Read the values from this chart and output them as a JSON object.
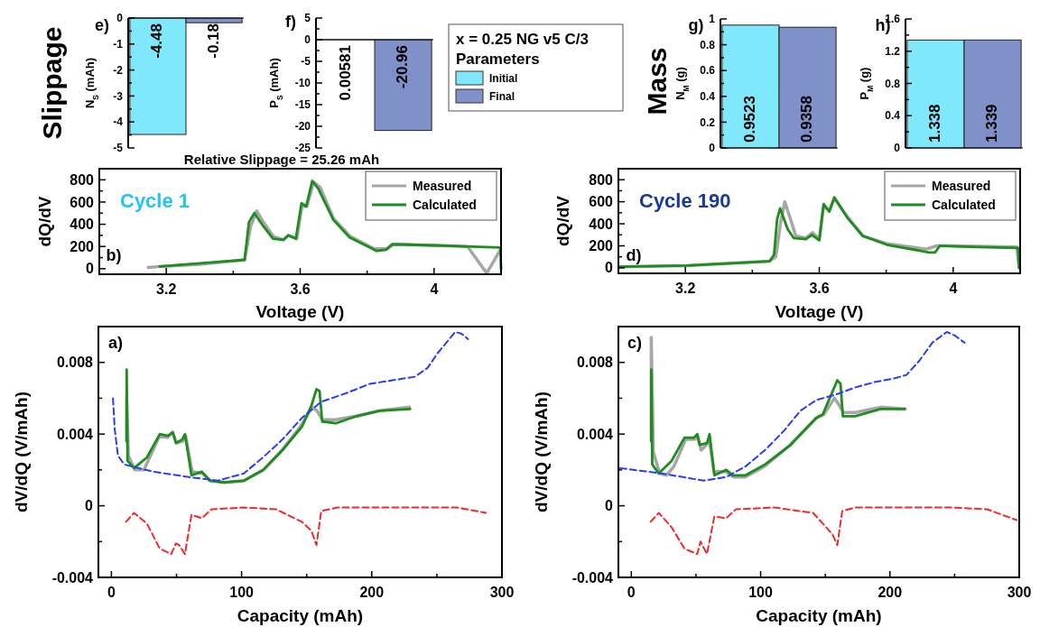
{
  "chart_data": [
    {
      "type": "bar",
      "ylabel": "N$_{S}$ (mAh)",
      "annotations": [
        "Slippage",
        "e)"
      ],
      "categories": [
        null,
        null
      ],
      "values": [
        -4.48,
        -0.18
      ],
      "colors": [
        "#80e8fb",
        "#8090c8"
      ],
      "data_labels": true,
      "ylim": [
        -5,
        0
      ],
      "yticks": [
        0,
        {
          "value": -0.5,
          "label": null
        },
        -1,
        {
          "value": -1.5,
          "label": null
        },
        -2,
        {
          "value": -2.5,
          "label": null
        },
        -3,
        {
          "value": -3.5,
          "label": null
        },
        -4,
        {
          "value": -4.5,
          "label": null
        },
        -5
      ]
    },
    {
      "type": "bar",
      "ylabel": "P$_{S}$ (mAh)",
      "annotations": [
        "f)",
        "Relative Slippage = 25.26 mAh"
      ],
      "categories": [
        null,
        null
      ],
      "values": [
        0.00581,
        -20.96
      ],
      "colors": [
        "#80e8fb",
        "#8090c8"
      ],
      "data_labels": true,
      "ylim": [
        -25,
        5
      ],
      "yticks": [
        5,
        {
          "value": 2.5,
          "label": null
        },
        0,
        {
          "value": -2.5,
          "label": null
        },
        -5,
        {
          "value": -7.5,
          "label": null
        },
        -10,
        {
          "value": -12.5,
          "label": null
        },
        -15,
        {
          "value": -17.5,
          "label": null
        },
        -20,
        {
          "value": -22.5,
          "label": null
        },
        -25
      ]
    },
    {
      "type": "other",
      "title": "x = 0.25 NG v5 C/3",
      "subtitle": "Parameters",
      "legend": "top right",
      "series": [
        {
          "name": "Initial",
          "color": "#80e8fb"
        },
        {
          "name": "Final",
          "color": "#8090c8"
        }
      ]
    },
    {
      "type": "bar",
      "ylabel": "N$_{M}$ (g)",
      "annotations": [
        "Mass",
        "g)"
      ],
      "categories": [
        null,
        null
      ],
      "values": [
        0.9523,
        0.9358
      ],
      "colors": [
        "#80e8fb",
        "#8090c8"
      ],
      "data_labels": true,
      "ylim": [
        0,
        1
      ],
      "yticks": [
        0,
        {
          "value": 0.1,
          "label": null
        },
        0.2,
        {
          "value": 0.3,
          "label": null
        },
        0.4,
        {
          "value": 0.5,
          "label": null
        },
        0.6,
        {
          "value": 0.7,
          "label": null
        },
        0.8,
        {
          "value": 0.9,
          "label": null
        },
        1
      ]
    },
    {
      "type": "bar",
      "ylabel": "P$_{M}$ (g)",
      "annotations": [
        "h)"
      ],
      "categories": [
        null,
        null
      ],
      "values": [
        1.338,
        1.339
      ],
      "colors": [
        "#80e8fb",
        "#8090c8"
      ],
      "data_labels": true,
      "ylim": [
        0,
        1.6
      ],
      "yticks": [
        0,
        {
          "value": 0.2,
          "label": null
        },
        0.4,
        {
          "value": 0.6,
          "label": null
        },
        0.8,
        {
          "value": 1.0,
          "label": null
        },
        1.2,
        {
          "value": 1.4,
          "label": null
        },
        1.6
      ]
    },
    {
      "type": "line",
      "xlabel": "Voltage (V)",
      "ylabel": "dQ/dV",
      "annotations": [
        "Cycle 1",
        "b)"
      ],
      "legend": "top right",
      "xlim": [
        3.0,
        4.2
      ],
      "xticks": [
        3.2,
        {
          "value": 3.4,
          "label": null
        },
        3.6,
        {
          "value": 3.8,
          "label": null
        },
        4
      ],
      "ylim": [
        -50,
        900
      ],
      "yticks": [
        0,
        {
          "value": 100,
          "label": null
        },
        200,
        {
          "value": 300,
          "label": null
        },
        400,
        {
          "value": 500,
          "label": null
        },
        600,
        {
          "value": 700,
          "label": null
        },
        800
      ],
      "series": [
        {
          "name": "Measured",
          "color": "#a6a6a6",
          "x": [
            3.146,
            3.18,
            3.3,
            3.434,
            3.452,
            3.47,
            3.49,
            3.52,
            3.55,
            3.565,
            3.59,
            3.605,
            3.62,
            3.64,
            3.66,
            3.7,
            3.75,
            3.82,
            3.86,
            3.88,
            4.0,
            4.1,
            4.157,
            4.198
          ],
          "values": [
            10,
            20,
            40,
            80,
            380,
            520,
            420,
            290,
            260,
            300,
            270,
            560,
            560,
            780,
            730,
            450,
            290,
            180,
            180,
            220,
            210,
            200,
            -40,
            170
          ]
        },
        {
          "name": "Calculated",
          "color": "#1e8c1e",
          "x": [
            3.18,
            3.434,
            3.447,
            3.463,
            3.488,
            3.519,
            3.55,
            3.564,
            3.587,
            3.604,
            3.618,
            3.636,
            3.654,
            3.699,
            3.748,
            3.829,
            3.856,
            3.874,
            4.0,
            4.198,
            4.2
          ],
          "values": [
            20,
            80,
            420,
            500,
            390,
            270,
            260,
            300,
            270,
            590,
            560,
            790,
            720,
            440,
            280,
            160,
            170,
            220,
            210,
            190,
            0
          ]
        }
      ]
    },
    {
      "type": "line",
      "xlabel": "Voltage (V)",
      "ylabel": "dQ/dV",
      "annotations": [
        "d)",
        "Cycle 190"
      ],
      "legend": "top right",
      "xlim": [
        3.0,
        4.2
      ],
      "xticks": [
        3.2,
        {
          "value": 3.4,
          "label": null
        },
        3.6,
        {
          "value": 3.8,
          "label": null
        },
        4
      ],
      "ylim": [
        -50,
        900
      ],
      "yticks": [
        0,
        {
          "value": 100,
          "label": null
        },
        200,
        {
          "value": 300,
          "label": null
        },
        400,
        {
          "value": 500,
          "label": null
        },
        600,
        {
          "value": 700,
          "label": null
        },
        800
      ],
      "series": [
        {
          "name": "Measured",
          "color": "#a6a6a6",
          "x": [
            3.005,
            3.2,
            3.45,
            3.47,
            3.485,
            3.497,
            3.51,
            3.53,
            3.56,
            3.58,
            3.6,
            3.613,
            3.63,
            3.645,
            3.69,
            3.73,
            3.8,
            3.92,
            3.95,
            4.0,
            4.19,
            4.197
          ],
          "values": [
            10,
            20,
            60,
            100,
            420,
            600,
            480,
            290,
            270,
            320,
            260,
            560,
            520,
            630,
            440,
            290,
            220,
            170,
            200,
            200,
            190,
            0
          ]
        },
        {
          "name": "Calculated",
          "color": "#1e8c1e",
          "x": [
            3.005,
            3.2,
            3.452,
            3.465,
            3.474,
            3.483,
            3.506,
            3.524,
            3.56,
            3.578,
            3.6,
            3.613,
            3.63,
            3.645,
            3.685,
            3.73,
            3.802,
            3.928,
            3.946,
            3.96,
            4.045,
            4.194,
            4.197
          ],
          "values": [
            10,
            20,
            60,
            120,
            440,
            540,
            350,
            270,
            260,
            300,
            250,
            580,
            510,
            640,
            450,
            290,
            210,
            140,
            140,
            200,
            190,
            180,
            0
          ]
        }
      ]
    },
    {
      "type": "line",
      "xlabel": "Capacity (mAh)",
      "ylabel": "dV/dQ (V/mAh)",
      "annotations": [
        "a)"
      ],
      "xlim": [
        -10,
        300
      ],
      "xticks": [
        0,
        {
          "value": 50,
          "label": null
        },
        100,
        {
          "value": 150,
          "label": null
        },
        200,
        {
          "value": 250,
          "label": null
        },
        300
      ],
      "ylim": [
        -0.004,
        0.01
      ],
      "yticks": [
        -0.004,
        {
          "value": -0.002,
          "label": null
        },
        0,
        {
          "value": 0.002,
          "label": null
        },
        0.004,
        {
          "value": 0.006,
          "label": null
        },
        0.008
      ],
      "series": [
        {
          "color": "#a6a6a6",
          "x": [
            11.7,
            11.7,
            13,
            18,
            25,
            37,
            43,
            47,
            50,
            55,
            57,
            62,
            70,
            76,
            87,
            102,
            117,
            131,
            146,
            154,
            158,
            162,
            172,
            188,
            206,
            229
          ],
          "values": [
            0.0036,
            0.006,
            0.0028,
            0.002,
            0.002,
            0.0039,
            0.0038,
            0.0041,
            0.0035,
            0.0036,
            0.0039,
            0.0019,
            0.0018,
            0.0014,
            0.0013,
            0.0014,
            0.002,
            0.0031,
            0.0045,
            0.0055,
            0.0053,
            0.0048,
            0.0048,
            0.005,
            0.0053,
            0.0055
          ]
        },
        {
          "color": "#1e8c1e",
          "x": [
            11.7,
            11.7,
            12.4,
            17.4,
            27.3,
            37.2,
            43.4,
            47.1,
            49.6,
            54.5,
            56.5,
            61.5,
            69.4,
            75.6,
            86.8,
            101.7,
            116.5,
            131.4,
            146.3,
            153.7,
            157.5,
            159.9,
            161.9,
            172.3,
            188.4,
            205.8,
            229.4
          ],
          "values": [
            0.0036,
            0.0076,
            0.0025,
            0.0021,
            0.0027,
            0.004,
            0.0039,
            0.0041,
            0.0035,
            0.0037,
            0.004,
            0.0017,
            0.0019,
            0.0014,
            0.0013,
            0.0014,
            0.002,
            0.0031,
            0.0044,
            0.0056,
            0.0065,
            0.0064,
            0.0047,
            0.0046,
            0.005,
            0.0053,
            0.0054
          ]
        },
        {
          "color": "#2a3cf0",
          "line_style": "dashed",
          "x": [
            1.2,
            2.5,
            5,
            9.9,
            32.2,
            59.5,
            81.8,
            101.7,
            116.5,
            131.4,
            146.3,
            161.2,
            181,
            198.4,
            215.7,
            233.1,
            243,
            250.4,
            264.1,
            269,
            274
          ],
          "values": [
            0.006,
            0.0043,
            0.0028,
            0.0023,
            0.0019,
            0.0016,
            0.0014,
            0.0018,
            0.0027,
            0.0037,
            0.0049,
            0.0058,
            0.0063,
            0.0068,
            0.007,
            0.0072,
            0.0077,
            0.0085,
            0.0097,
            0.0096,
            0.0093
          ]
        },
        {
          "color": "#f02a2a",
          "line_style": "dashed",
          "x": [
            11.2,
            17.4,
            27.3,
            37.2,
            45.9,
            49.6,
            52.1,
            56.5,
            61.5,
            69.4,
            76.9,
            101.7,
            126.5,
            146.3,
            153.7,
            157.5,
            161.2,
            173.6,
            225.6,
            265.3,
            287.6
          ],
          "values": [
            -0.0009,
            -0.0004,
            -0.001,
            -0.0024,
            -0.0027,
            -0.0021,
            -0.0022,
            -0.0027,
            -0.0005,
            -0.0007,
            -0.0002,
            -0.0001,
            -0.0002,
            -0.0009,
            -0.0014,
            -0.0022,
            -0.0003,
            -0.0001,
            -0.0001,
            -0.0001,
            -0.0004
          ]
        }
      ]
    },
    {
      "type": "line",
      "xlabel": "Capacity (mAh)",
      "ylabel": "dV/dQ (V/mAh)",
      "annotations": [
        "c)"
      ],
      "xlim": [
        -10,
        300
      ],
      "xticks": [
        0,
        {
          "value": 50,
          "label": null
        },
        100,
        {
          "value": 150,
          "label": null
        },
        200,
        {
          "value": 250,
          "label": null
        },
        300
      ],
      "ylim": [
        -0.004,
        0.01
      ],
      "yticks": [
        -0.004,
        {
          "value": -0.002,
          "label": null
        },
        0,
        {
          "value": 0.002,
          "label": null
        },
        0.004,
        {
          "value": 0.006,
          "label": null
        },
        0.008
      ],
      "series": [
        {
          "color": "#a6a6a6",
          "x": [
            15.4,
            15.4,
            17,
            22,
            27,
            33,
            42,
            49,
            51,
            54,
            58,
            60.5,
            64,
            73,
            79,
            88,
            103,
            123,
            143,
            149,
            157,
            160,
            164,
            173,
            193,
            211.6
          ],
          "values": [
            0.0036,
            0.0094,
            0.003,
            0.0018,
            0.0017,
            0.0022,
            0.0037,
            0.0037,
            0.0039,
            0.0031,
            0.0034,
            0.0036,
            0.0019,
            0.0019,
            0.0016,
            0.0016,
            0.0022,
            0.0034,
            0.0049,
            0.0051,
            0.006,
            0.0057,
            0.0052,
            0.0052,
            0.0055,
            0.0054
          ]
        },
        {
          "color": "#1e8c1e",
          "x": [
            15.4,
            15.4,
            16.2,
            21.2,
            31.1,
            41.1,
            48.5,
            51,
            53,
            58.5,
            60.5,
            64.2,
            73.4,
            78.4,
            88.4,
            103.3,
            123.2,
            143.1,
            148.1,
            159.3,
            161.8,
            163.6,
            173,
            192.9,
            211.6
          ],
          "values": [
            0.0036,
            0.0076,
            0.0023,
            0.0018,
            0.0025,
            0.0038,
            0.0038,
            0.004,
            0.0034,
            0.0035,
            0.004,
            0.0017,
            0.002,
            0.0017,
            0.0017,
            0.0023,
            0.0034,
            0.0049,
            0.0051,
            0.007,
            0.0068,
            0.005,
            0.005,
            0.0054,
            0.0054
          ]
        },
        {
          "color": "#2a3cf0",
          "line_style": "dashed",
          "x": [
            -8.7,
            23.6,
            56,
            73.4,
            88.4,
            103.3,
            118.3,
            130.7,
            143.1,
            158.1,
            173,
            188,
            202.9,
            212.8,
            222.8,
            232.8,
            244,
            250.2,
            257.7
          ],
          "values": [
            0.0021,
            0.0018,
            0.0014,
            0.0016,
            0.0022,
            0.0031,
            0.0042,
            0.0053,
            0.0059,
            0.0062,
            0.0066,
            0.0069,
            0.0071,
            0.0073,
            0.0081,
            0.0091,
            0.0097,
            0.0095,
            0.0091
          ]
        },
        {
          "color": "#f02a2a",
          "line_style": "dashed",
          "x": [
            14.9,
            21.2,
            31.1,
            41.1,
            51,
            53.5,
            58.5,
            64.2,
            73.4,
            80.9,
            110.8,
            140.6,
            155.6,
            159.3,
            163.1,
            173,
            247.7,
            275.1,
            298
          ],
          "values": [
            -0.0009,
            -0.0004,
            -0.0012,
            -0.0024,
            -0.0027,
            -0.002,
            -0.0027,
            -0.0006,
            -0.0007,
            -0.0002,
            -0.0001,
            -0.0004,
            -0.0016,
            -0.0022,
            -0.0003,
            -0.0001,
            -0.0001,
            -0.0002,
            -0.0008
          ]
        }
      ]
    }
  ]
}
